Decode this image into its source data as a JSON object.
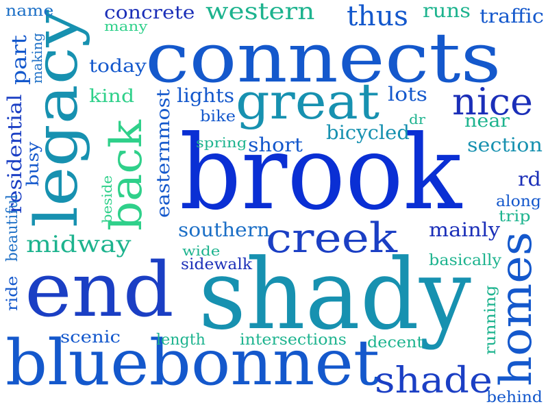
{
  "palette": {
    "blue_deep": "#0a2fd4",
    "blue": "#1458cc",
    "blue_mid": "#1c6fc6",
    "teal": "#1791b0",
    "teal_green": "#1db38e",
    "green": "#2fd08a",
    "navy": "#1b2fb8"
  },
  "words": [
    {
      "text": "brook",
      "color": "#0a2fd4"
    },
    {
      "text": "shady",
      "color": "#1791b0"
    },
    {
      "text": "connects",
      "color": "#1458cc"
    },
    {
      "text": "end",
      "color": "#1b3fc4"
    },
    {
      "text": "bluebonnet",
      "color": "#1458cc"
    },
    {
      "text": "legacy",
      "color": "#1791b0"
    },
    {
      "text": "great",
      "color": "#1791b0"
    },
    {
      "text": "creek",
      "color": "#1b3fc4"
    },
    {
      "text": "homes",
      "color": "#1458cc"
    },
    {
      "text": "back",
      "color": "#2fd08a"
    },
    {
      "text": "nice",
      "color": "#1b2fb8"
    },
    {
      "text": "shade",
      "color": "#1b3fc4"
    },
    {
      "text": "thus",
      "color": "#1458cc"
    },
    {
      "text": "midway",
      "color": "#1db38e"
    },
    {
      "text": "southern",
      "color": "#1c6fc6"
    },
    {
      "text": "western",
      "color": "#1db38e"
    },
    {
      "text": "concrete",
      "color": "#1b2fb8"
    },
    {
      "text": "traffic",
      "color": "#1458cc"
    },
    {
      "text": "today",
      "color": "#1458cc"
    },
    {
      "text": "lights",
      "color": "#1458cc"
    },
    {
      "text": "lots",
      "color": "#1458cc"
    },
    {
      "text": "kind",
      "color": "#2fd08a"
    },
    {
      "text": "bicycled",
      "color": "#1791b0"
    },
    {
      "text": "near",
      "color": "#1db38e"
    },
    {
      "text": "section",
      "color": "#1791b0"
    },
    {
      "text": "short",
      "color": "#1458cc"
    },
    {
      "text": "bike",
      "color": "#1458cc"
    },
    {
      "text": "spring",
      "color": "#1db38e"
    },
    {
      "text": "rd",
      "color": "#1b2fb8"
    },
    {
      "text": "along",
      "color": "#1458cc"
    },
    {
      "text": "trip",
      "color": "#1db38e"
    },
    {
      "text": "mainly",
      "color": "#1b2fb8"
    },
    {
      "text": "basically",
      "color": "#1db38e"
    },
    {
      "text": "wide",
      "color": "#1db38e"
    },
    {
      "text": "sidewalk",
      "color": "#1b2fb8"
    },
    {
      "text": "scenic",
      "color": "#1458cc"
    },
    {
      "text": "length",
      "color": "#1db38e"
    },
    {
      "text": "intersections",
      "color": "#1db38e"
    },
    {
      "text": "decent",
      "color": "#1db38e"
    },
    {
      "text": "behind",
      "color": "#1458cc"
    },
    {
      "text": "runs",
      "color": "#1db38e"
    },
    {
      "text": "name",
      "color": "#1c6fc6"
    },
    {
      "text": "many",
      "color": "#2fd08a"
    },
    {
      "text": "dr",
      "color": "#1db38e"
    },
    {
      "text": "part",
      "color": "#1458cc"
    },
    {
      "text": "making",
      "color": "#1c6fc6"
    },
    {
      "text": "residential",
      "color": "#1b3fc4"
    },
    {
      "text": "busy",
      "color": "#1458cc"
    },
    {
      "text": "beautiful",
      "color": "#1c6fc6"
    },
    {
      "text": "ride",
      "color": "#1458cc"
    },
    {
      "text": "beside",
      "color": "#2fd08a"
    },
    {
      "text": "easternmost",
      "color": "#1458cc"
    },
    {
      "text": "running",
      "color": "#1db38e"
    }
  ]
}
